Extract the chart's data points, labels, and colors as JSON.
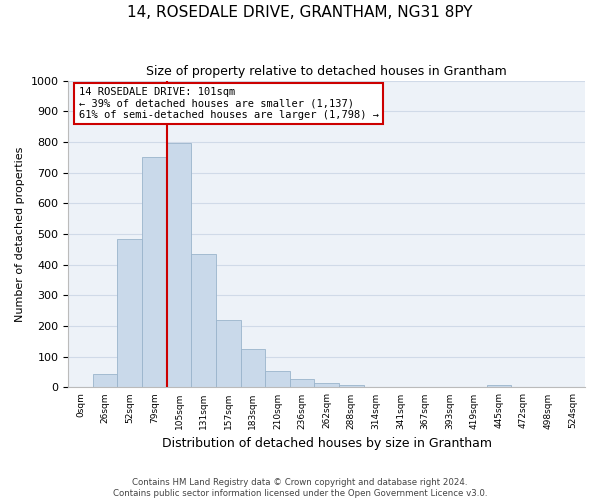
{
  "title": "14, ROSEDALE DRIVE, GRANTHAM, NG31 8PY",
  "subtitle": "Size of property relative to detached houses in Grantham",
  "xlabel": "Distribution of detached houses by size in Grantham",
  "ylabel": "Number of detached properties",
  "bar_labels": [
    "0sqm",
    "26sqm",
    "52sqm",
    "79sqm",
    "105sqm",
    "131sqm",
    "157sqm",
    "183sqm",
    "210sqm",
    "236sqm",
    "262sqm",
    "288sqm",
    "314sqm",
    "341sqm",
    "367sqm",
    "393sqm",
    "419sqm",
    "445sqm",
    "472sqm",
    "498sqm",
    "524sqm"
  ],
  "bar_values": [
    0,
    45,
    485,
    750,
    795,
    435,
    220,
    125,
    52,
    28,
    15,
    8,
    3,
    0,
    1,
    0,
    0,
    8,
    0,
    0,
    0
  ],
  "bar_color": "#c9d9ea",
  "bar_edgecolor": "#9ab4cc",
  "vline_x_index": 4,
  "vline_color": "#cc0000",
  "vline_linewidth": 1.5,
  "ylim": [
    0,
    1000
  ],
  "yticks": [
    0,
    100,
    200,
    300,
    400,
    500,
    600,
    700,
    800,
    900,
    1000
  ],
  "annotation_line1": "14 ROSEDALE DRIVE: 101sqm",
  "annotation_line2": "← 39% of detached houses are smaller (1,137)",
  "annotation_line3": "61% of semi-detached houses are larger (1,798) →",
  "footer_line1": "Contains HM Land Registry data © Crown copyright and database right 2024.",
  "footer_line2": "Contains public sector information licensed under the Open Government Licence v3.0.",
  "grid_color": "#d0dae8",
  "background_color": "#edf2f8"
}
